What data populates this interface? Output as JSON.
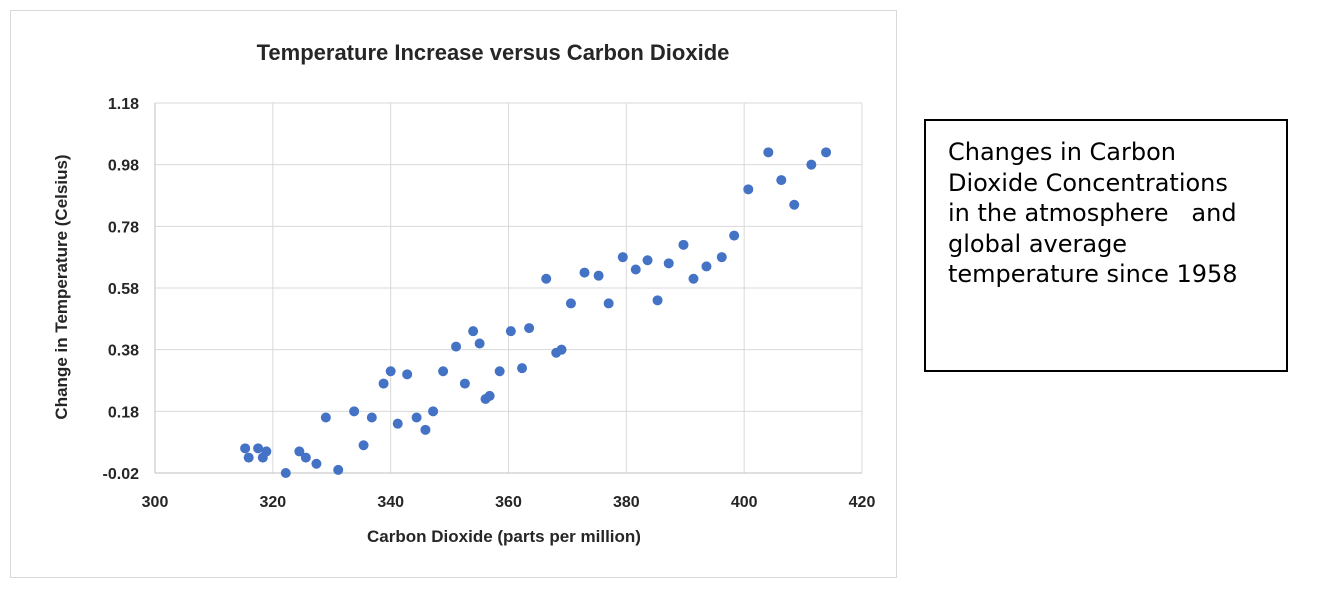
{
  "chart_data": {
    "type": "scatter",
    "title": "Temperature Increase versus Carbon Dioxide",
    "xlabel": "Carbon Dioxide (parts per million)",
    "ylabel": "Change in Temperature (Celsius)",
    "xlim": [
      300,
      420
    ],
    "ylim": [
      -0.02,
      1.18
    ],
    "xticks": [
      "300",
      "320",
      "340",
      "360",
      "380",
      "400",
      "420"
    ],
    "yticks": [
      "-0.02",
      "0.18",
      "0.38",
      "0.58",
      "0.78",
      "0.98",
      "1.18"
    ],
    "xtick_values": [
      300,
      320,
      340,
      360,
      380,
      400,
      420
    ],
    "ytick_values": [
      -0.02,
      0.18,
      0.38,
      0.58,
      0.78,
      0.98,
      1.18
    ],
    "grid": true,
    "marker_color": "#4472c4",
    "points": [
      [
        315.3,
        0.06
      ],
      [
        315.9,
        0.03
      ],
      [
        317.5,
        0.06
      ],
      [
        318.3,
        0.03
      ],
      [
        318.9,
        0.05
      ],
      [
        322.2,
        -0.02
      ],
      [
        324.5,
        0.05
      ],
      [
        325.6,
        0.03
      ],
      [
        327.4,
        0.01
      ],
      [
        329.0,
        0.16
      ],
      [
        331.1,
        -0.01
      ],
      [
        333.8,
        0.18
      ],
      [
        335.4,
        0.07
      ],
      [
        336.8,
        0.16
      ],
      [
        338.8,
        0.27
      ],
      [
        340.0,
        0.31
      ],
      [
        341.2,
        0.14
      ],
      [
        342.8,
        0.3
      ],
      [
        344.4,
        0.16
      ],
      [
        345.9,
        0.12
      ],
      [
        347.2,
        0.18
      ],
      [
        348.9,
        0.31
      ],
      [
        351.1,
        0.39
      ],
      [
        352.6,
        0.27
      ],
      [
        354.0,
        0.44
      ],
      [
        355.1,
        0.4
      ],
      [
        356.1,
        0.22
      ],
      [
        356.8,
        0.23
      ],
      [
        358.5,
        0.31
      ],
      [
        360.4,
        0.44
      ],
      [
        362.3,
        0.32
      ],
      [
        363.5,
        0.45
      ],
      [
        366.4,
        0.61
      ],
      [
        368.1,
        0.37
      ],
      [
        369.0,
        0.38
      ],
      [
        370.6,
        0.53
      ],
      [
        372.9,
        0.63
      ],
      [
        375.3,
        0.62
      ],
      [
        377.0,
        0.53
      ],
      [
        379.4,
        0.68
      ],
      [
        381.6,
        0.64
      ],
      [
        383.6,
        0.67
      ],
      [
        385.3,
        0.54
      ],
      [
        387.2,
        0.66
      ],
      [
        389.7,
        0.72
      ],
      [
        391.4,
        0.61
      ],
      [
        393.6,
        0.65
      ],
      [
        396.2,
        0.68
      ],
      [
        398.3,
        0.75
      ],
      [
        400.7,
        0.9
      ],
      [
        404.1,
        1.02
      ],
      [
        406.3,
        0.93
      ],
      [
        408.5,
        0.85
      ],
      [
        411.4,
        0.98
      ],
      [
        413.9,
        1.02
      ]
    ]
  },
  "caption": {
    "text": "Changes in Carbon\nDioxide Concentrations\nin the atmosphere   and\nglobal average\ntemperature since 1958"
  }
}
